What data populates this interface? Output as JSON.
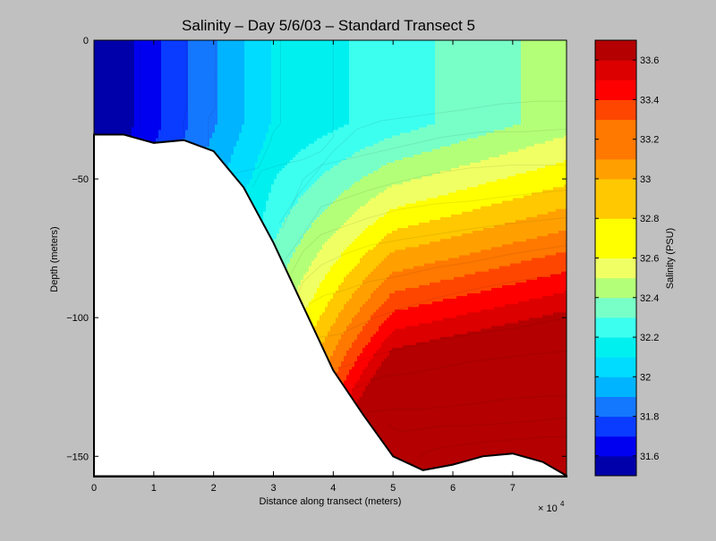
{
  "figure": {
    "background": "#c0c0c0"
  },
  "chart_data": [
    {
      "type": "heatmap",
      "subtype": "filled-contour-transect",
      "title": "Salinity – Day 5/6/03 – Standard Transect 5",
      "xlabel": "Distance along transect (meters)",
      "ylabel": "Depth (meters)",
      "x_exponent_label": "× 10",
      "x_exponent_power": "4",
      "xlim": [
        0,
        79000
      ],
      "ylim": [
        -157,
        0
      ],
      "xticks": [
        0,
        10000,
        20000,
        30000,
        40000,
        50000,
        60000,
        70000
      ],
      "xtick_labels": [
        "0",
        "1",
        "2",
        "3",
        "4",
        "5",
        "6",
        "7"
      ],
      "yticks": [
        0,
        -50,
        -100,
        -150
      ],
      "ytick_labels": [
        "0",
        "−50",
        "−100",
        "−150"
      ],
      "grid": false,
      "levels": [
        31.6,
        31.7,
        31.8,
        31.9,
        32.0,
        32.1,
        32.2,
        32.3,
        32.4,
        32.5,
        32.6,
        32.7,
        32.8,
        32.9,
        33.0,
        33.1,
        33.2,
        33.3,
        33.4,
        33.5,
        33.6
      ],
      "level_colors": [
        "#0000aa",
        "#0000f0",
        "#0a3cff",
        "#1478ff",
        "#00b4ff",
        "#00dcff",
        "#00f0f0",
        "#3cfff0",
        "#78ffc8",
        "#b4ff78",
        "#f0ff64",
        "#ffff00",
        "#ffc800",
        "#ffa000",
        "#ff7800",
        "#ff4600",
        "#ff0000",
        "#dc0000",
        "#b40000"
      ],
      "bathymetry": {
        "x": [
          0,
          5000,
          10000,
          15000,
          20000,
          25000,
          30000,
          35000,
          40000,
          45000,
          50000,
          55000,
          60000,
          65000,
          70000,
          75000,
          79000
        ],
        "depth": [
          -34,
          -34,
          -37,
          -36,
          -40,
          -53,
          -73,
          -96,
          -119,
          -135,
          -150,
          -155,
          -153,
          -150,
          -149,
          -152,
          -157
        ]
      },
      "contour_region_boundaries": [
        {
          "x": [
            7700,
            7700
          ],
          "depth": [
            0,
            -34
          ]
        },
        {
          "x": [
            15500,
            15500,
            14900,
            14900
          ],
          "depth": [
            0,
            -25,
            -30,
            -36
          ]
        },
        {
          "x": [
            20300,
            20200,
            19100,
            19100
          ],
          "depth": [
            0,
            -25,
            -28,
            -39
          ]
        },
        {
          "x": [
            31200,
            31200,
            30000,
            29200,
            27500,
            23400,
            22400
          ],
          "depth": [
            0,
            -30,
            -33,
            -38,
            -46,
            -48,
            -47
          ]
        },
        {
          "x": [
            40000,
            40000,
            38000,
            35000,
            31000,
            28000,
            26500
          ],
          "depth": [
            0,
            -35,
            -40,
            -43,
            -45,
            -47,
            -53
          ]
        },
        {
          "x": [
            79000,
            74000,
            68000,
            62000,
            55000,
            48000,
            44000,
            40000,
            34000,
            31000
          ],
          "depth": [
            -22,
            -22,
            -23,
            -25,
            -27,
            -29,
            -32,
            -40,
            -56,
            -66
          ]
        },
        {
          "x": [
            79000,
            72000,
            65000,
            58000,
            52000,
            46000,
            42000,
            38000,
            35000,
            31500
          ],
          "depth": [
            -32,
            -33,
            -33,
            -35,
            -38,
            -41,
            -43,
            -45,
            -50,
            -68
          ]
        },
        {
          "x": [
            79000,
            70000,
            63000,
            57000,
            51000,
            46000,
            42000,
            38000,
            35000,
            32000
          ],
          "depth": [
            -45,
            -45,
            -46,
            -48,
            -51,
            -54,
            -57,
            -60,
            -70,
            -79
          ]
        },
        {
          "x": [
            79000,
            70000,
            63000,
            57000,
            51000,
            46000,
            42000,
            38000,
            35000,
            33000
          ],
          "depth": [
            -54,
            -56,
            -58,
            -59,
            -61,
            -64,
            -67,
            -70,
            -76,
            -84
          ]
        },
        {
          "x": [
            79000,
            70000,
            63000,
            57000,
            51000,
            46000,
            42000,
            38000,
            35000,
            34000
          ],
          "depth": [
            -64,
            -66,
            -68,
            -70,
            -72,
            -74,
            -77,
            -81,
            -87,
            -92
          ]
        },
        {
          "x": [
            79000,
            70000,
            63000,
            57000,
            51000,
            46000,
            42000,
            38500,
            36000,
            35000
          ],
          "depth": [
            -74,
            -77,
            -80,
            -82,
            -85,
            -87,
            -90,
            -92,
            -95,
            -98
          ]
        },
        {
          "x": [
            79000,
            70000,
            63000,
            57000,
            51000,
            47000,
            44000,
            41000,
            38000,
            37000
          ],
          "depth": [
            -84,
            -87,
            -90,
            -93,
            -97,
            -100,
            -103,
            -106,
            -107,
            -108
          ]
        },
        {
          "x": [
            79000,
            70000,
            63000,
            57000,
            52000,
            48000,
            45000,
            43000,
            41000,
            39000
          ],
          "depth": [
            -100,
            -104,
            -106,
            -108,
            -111,
            -113,
            -115,
            -117,
            -118,
            -119
          ]
        },
        {
          "x": [
            79000,
            70000,
            63000,
            58000,
            53000,
            49000,
            46000,
            43000,
            41000
          ],
          "depth": [
            -112,
            -114,
            -116,
            -118,
            -120,
            -121,
            -123,
            -126,
            -125
          ]
        },
        {
          "x": [
            79000,
            70000,
            64000,
            59000,
            55000,
            50000,
            46000,
            44000,
            43000
          ],
          "depth": [
            -128,
            -129,
            -131,
            -132,
            -133,
            -133,
            -134,
            -136,
            -131
          ]
        },
        {
          "x": [
            79000,
            75000,
            69000,
            63000,
            59000,
            55000,
            52000,
            50000,
            49000
          ],
          "depth": [
            -136,
            -137,
            -138,
            -139,
            -139,
            -140,
            -141,
            -140,
            -138
          ]
        },
        {
          "x": [
            79000,
            75000,
            70000,
            65000,
            61000,
            58000,
            56000,
            55000,
            54500
          ],
          "depth": [
            -143,
            -143,
            -144,
            -145,
            -146,
            -147,
            -148,
            -149,
            -151
          ]
        }
      ],
      "colorbar": {
        "label": "Salinity (PSU)",
        "min": 31.5,
        "max": 33.7,
        "ticks": [
          31.6,
          31.8,
          32.0,
          32.2,
          32.4,
          32.6,
          32.8,
          33.0,
          33.2,
          33.4,
          33.6
        ],
        "tick_labels": [
          "31.6",
          "31.8",
          "32",
          "32.2",
          "32.4",
          "32.6",
          "32.8",
          "33",
          "33.2",
          "33.4",
          "33.6"
        ],
        "band_values": [
          31.55,
          31.65,
          31.75,
          31.85,
          31.95,
          32.05,
          32.15,
          32.25,
          32.35,
          32.45,
          32.55,
          32.65,
          32.75,
          32.85,
          32.95,
          33.05,
          33.15,
          33.25,
          33.35,
          33.45,
          33.55,
          33.65
        ],
        "band_colors": [
          "#0000aa",
          "#0000f0",
          "#0a3cff",
          "#1478ff",
          "#00b4ff",
          "#00dcff",
          "#00f0f0",
          "#3cfff0",
          "#78ffc8",
          "#b4ff78",
          "#f0ff64",
          "#ffff00",
          "#ffff00",
          "#ffc800",
          "#ffc800",
          "#ffa000",
          "#ff7800",
          "#ff7800",
          "#ff4600",
          "#ff0000",
          "#dc0000",
          "#b40000"
        ]
      }
    }
  ]
}
